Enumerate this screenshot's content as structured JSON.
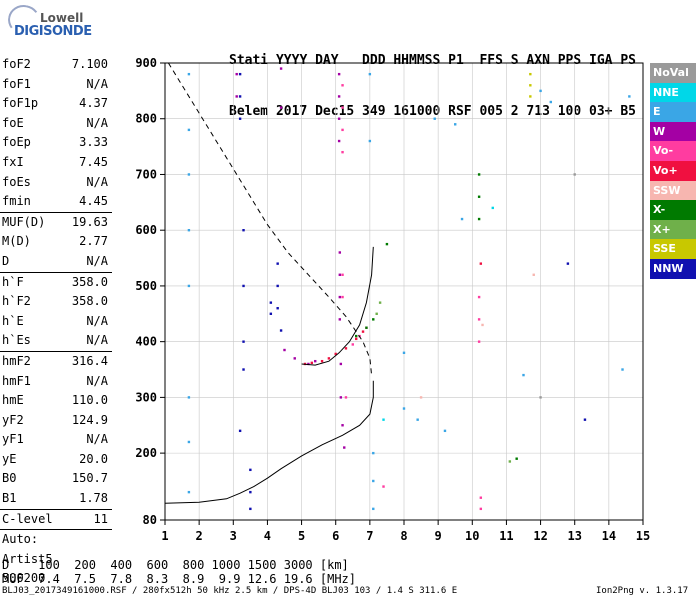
{
  "logo": {
    "line1": "Lowell",
    "line2": "DIGISONDE"
  },
  "header": {
    "row1": "Stati YYYY DAY   DDD HHMMSS P1  FFS S AXN PPS IGA PS",
    "row2": "Belem 2017 Dec15 349 161000 RSF 005 2 713 100 03+ B5"
  },
  "params": [
    {
      "label": "foF2",
      "value": "7.100"
    },
    {
      "label": "foF1",
      "value": "N/A"
    },
    {
      "label": "foF1p",
      "value": "4.37"
    },
    {
      "label": "foE",
      "value": "N/A"
    },
    {
      "label": "foEp",
      "value": "3.33"
    },
    {
      "label": "fxI",
      "value": "7.45"
    },
    {
      "label": "foEs",
      "value": "N/A"
    },
    {
      "label": "fmin",
      "value": "4.45"
    },
    {
      "label": "MUF(D)",
      "value": "19.63",
      "sep": true
    },
    {
      "label": "M(D)",
      "value": "2.77"
    },
    {
      "label": "D",
      "value": "N/A"
    },
    {
      "label": "h`F",
      "value": "358.0",
      "sep": true
    },
    {
      "label": "h`F2",
      "value": "358.0"
    },
    {
      "label": "h`E",
      "value": "N/A"
    },
    {
      "label": "h`Es",
      "value": "N/A"
    },
    {
      "label": "hmF2",
      "value": "316.4",
      "sep": true
    },
    {
      "label": "hmF1",
      "value": "N/A"
    },
    {
      "label": "hmE",
      "value": "110.0"
    },
    {
      "label": "yF2",
      "value": "124.9"
    },
    {
      "label": "yF1",
      "value": "N/A"
    },
    {
      "label": "yE",
      "value": "20.0"
    },
    {
      "label": "B0",
      "value": "150.7"
    },
    {
      "label": "B1",
      "value": "1.78"
    },
    {
      "label": "C-level",
      "value": "11",
      "sep": true
    },
    {
      "label": "Auto:",
      "value": "",
      "sep": true
    },
    {
      "label": "Artist5",
      "value": ""
    },
    {
      "label": "500200",
      "value": ""
    }
  ],
  "legend": [
    {
      "label": "NoVal",
      "color": "#9a9a9a"
    },
    {
      "label": "NNE",
      "color": "#00d7e8"
    },
    {
      "label": "E",
      "color": "#3aa6e6"
    },
    {
      "label": "W",
      "color": "#a400a4"
    },
    {
      "label": "Vo-",
      "color": "#ff3ca0"
    },
    {
      "label": "Vo+",
      "color": "#f01040"
    },
    {
      "label": "SSW",
      "color": "#f7b6b0"
    },
    {
      "label": "X-",
      "color": "#007a00"
    },
    {
      "label": "X+",
      "color": "#6fb04a"
    },
    {
      "label": "SSE",
      "color": "#c8c800"
    },
    {
      "label": "NNW",
      "color": "#1010b0"
    }
  ],
  "bottom": {
    "drow": "D    100  200  400  600  800 1000 1500 3000 [km]",
    "mufrow": "MUF  7.4  7.5  7.8  8.3  8.9  9.9 12.6 19.6 [MHz]"
  },
  "footer": {
    "left": "BLJ03_2017349161000.RSF / 280fx512h 50 kHz 2.5 km / DPS-4D BLJ03 103 / 1.4 S 311.6 E",
    "right": "Ion2Png v. 1.3.17"
  },
  "chart_data": {
    "type": "scatter",
    "title": "",
    "xlabel": "",
    "ylabel": "",
    "xlim": [
      1,
      15
    ],
    "ylim": [
      80,
      900
    ],
    "xticks": [
      1,
      2,
      3,
      4,
      5,
      6,
      7,
      8,
      9,
      10,
      11,
      12,
      13,
      14,
      15
    ],
    "yticks": [
      80,
      200,
      300,
      400,
      500,
      600,
      700,
      800,
      900
    ],
    "grid": true,
    "legend_placement": "right",
    "series": [
      {
        "name": "W",
        "color": "#a400a4",
        "points": [
          [
            6.1,
            880
          ],
          [
            6.1,
            840
          ],
          [
            6.1,
            800
          ],
          [
            6.1,
            760
          ],
          [
            6.12,
            560
          ],
          [
            6.12,
            520
          ],
          [
            6.12,
            480
          ],
          [
            6.12,
            440
          ],
          [
            6.15,
            360
          ],
          [
            6.15,
            300
          ],
          [
            6.2,
            250
          ],
          [
            6.25,
            210
          ],
          [
            5.2,
            360
          ],
          [
            5.4,
            365
          ],
          [
            4.8,
            370
          ],
          [
            4.5,
            385
          ],
          [
            4.4,
            890
          ],
          [
            4.4,
            820
          ],
          [
            3.1,
            880
          ],
          [
            3.1,
            840
          ]
        ]
      },
      {
        "name": "Vo-",
        "color": "#ff3ca0",
        "points": [
          [
            6.2,
            860
          ],
          [
            6.2,
            820
          ],
          [
            6.2,
            780
          ],
          [
            6.2,
            740
          ],
          [
            6.2,
            520
          ],
          [
            6.2,
            480
          ],
          [
            6.5,
            395
          ],
          [
            6.7,
            410
          ],
          [
            6.9,
            425
          ],
          [
            10.2,
            480
          ],
          [
            10.2,
            440
          ],
          [
            10.2,
            400
          ],
          [
            10.25,
            120
          ],
          [
            10.25,
            100
          ],
          [
            7.4,
            140
          ],
          [
            6.3,
            300
          ]
        ]
      },
      {
        "name": "Vo+",
        "color": "#f01040",
        "points": [
          [
            5.1,
            360
          ],
          [
            5.3,
            362
          ],
          [
            5.6,
            365
          ],
          [
            5.8,
            370
          ],
          [
            6.0,
            378
          ],
          [
            6.3,
            388
          ],
          [
            6.6,
            405
          ],
          [
            6.8,
            418
          ],
          [
            10.25,
            540
          ]
        ]
      },
      {
        "name": "X-",
        "color": "#007a00",
        "points": [
          [
            6.6,
            410
          ],
          [
            6.9,
            425
          ],
          [
            7.1,
            440
          ],
          [
            7.5,
            575
          ],
          [
            10.2,
            700
          ],
          [
            10.2,
            660
          ],
          [
            10.2,
            620
          ],
          [
            11.3,
            190
          ]
        ]
      },
      {
        "name": "X+",
        "color": "#6fb04a",
        "points": [
          [
            7.2,
            450
          ],
          [
            7.3,
            470
          ],
          [
            11.1,
            185
          ]
        ]
      },
      {
        "name": "E",
        "color": "#3aa6e6",
        "points": [
          [
            1.7,
            880
          ],
          [
            1.7,
            780
          ],
          [
            1.7,
            700
          ],
          [
            1.7,
            600
          ],
          [
            1.7,
            500
          ],
          [
            1.7,
            300
          ],
          [
            1.7,
            220
          ],
          [
            1.7,
            130
          ],
          [
            7.0,
            880
          ],
          [
            7.0,
            760
          ],
          [
            7.1,
            200
          ],
          [
            7.1,
            150
          ],
          [
            7.1,
            100
          ],
          [
            8.0,
            380
          ],
          [
            8.0,
            280
          ],
          [
            8.9,
            800
          ],
          [
            9.5,
            790
          ],
          [
            9.7,
            620
          ],
          [
            11.5,
            340
          ],
          [
            12.0,
            850
          ],
          [
            12.3,
            830
          ],
          [
            14.6,
            840
          ],
          [
            14.4,
            350
          ],
          [
            8.4,
            260
          ],
          [
            9.2,
            240
          ]
        ]
      },
      {
        "name": "NNE",
        "color": "#00d7e8",
        "points": [
          [
            7.4,
            260
          ],
          [
            10.6,
            640
          ]
        ]
      },
      {
        "name": "SSW",
        "color": "#f7b6b0",
        "points": [
          [
            10.3,
            430
          ],
          [
            8.5,
            300
          ],
          [
            11.8,
            520
          ]
        ]
      },
      {
        "name": "SSE",
        "color": "#c8c800",
        "points": [
          [
            11.7,
            880
          ],
          [
            11.7,
            860
          ],
          [
            11.7,
            840
          ]
        ]
      },
      {
        "name": "NNW",
        "color": "#1010b0",
        "points": [
          [
            3.2,
            880
          ],
          [
            3.2,
            840
          ],
          [
            3.2,
            800
          ],
          [
            3.3,
            600
          ],
          [
            3.3,
            500
          ],
          [
            3.3,
            400
          ],
          [
            3.3,
            350
          ],
          [
            3.2,
            240
          ],
          [
            3.5,
            170
          ],
          [
            3.5,
            130
          ],
          [
            3.5,
            100
          ],
          [
            4.3,
            540
          ],
          [
            4.3,
            500
          ],
          [
            4.3,
            460
          ],
          [
            4.4,
            420
          ],
          [
            4.1,
            470
          ],
          [
            4.1,
            450
          ],
          [
            12.8,
            540
          ],
          [
            13.3,
            260
          ]
        ]
      },
      {
        "name": "NoVal",
        "color": "#9a9a9a",
        "points": [
          [
            12.0,
            300
          ],
          [
            13.0,
            700
          ]
        ]
      }
    ],
    "lines": [
      {
        "name": "virtual-height-trace",
        "style": "solid",
        "points": [
          [
            5.0,
            360
          ],
          [
            5.4,
            358
          ],
          [
            5.8,
            365
          ],
          [
            6.1,
            380
          ],
          [
            6.4,
            400
          ],
          [
            6.7,
            430
          ],
          [
            6.9,
            470
          ],
          [
            7.05,
            520
          ],
          [
            7.1,
            570
          ]
        ]
      },
      {
        "name": "dashed-profile",
        "style": "dashed",
        "points": [
          [
            1.1,
            900
          ],
          [
            1.6,
            850
          ],
          [
            2.2,
            790
          ],
          [
            2.9,
            720
          ],
          [
            3.5,
            660
          ],
          [
            4.0,
            610
          ],
          [
            4.6,
            560
          ],
          [
            5.2,
            520
          ],
          [
            5.8,
            480
          ],
          [
            6.3,
            445
          ],
          [
            6.8,
            400
          ],
          [
            7.0,
            370
          ],
          [
            7.05,
            340
          ]
        ]
      },
      {
        "name": "true-height-profile",
        "style": "solid",
        "points": [
          [
            1.0,
            110
          ],
          [
            2.0,
            112
          ],
          [
            2.8,
            118
          ],
          [
            3.2,
            128
          ],
          [
            3.6,
            140
          ],
          [
            4.0,
            155
          ],
          [
            4.4,
            172
          ],
          [
            5.0,
            195
          ],
          [
            5.6,
            215
          ],
          [
            6.2,
            232
          ],
          [
            6.7,
            250
          ],
          [
            7.0,
            270
          ],
          [
            7.1,
            300
          ],
          [
            7.1,
            330
          ]
        ]
      }
    ]
  }
}
